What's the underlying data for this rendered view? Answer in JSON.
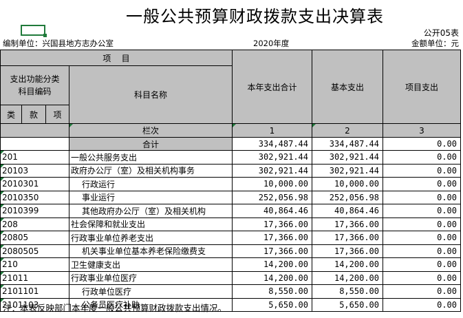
{
  "title": "一般公共预算财政拨款支出决算表",
  "form_code": "公开05表",
  "unit_label": "编制单位：兴国县地方志办公室",
  "year": "2020年度",
  "currency_label": "金额单位：元",
  "header": {
    "items": "项    目",
    "func_code": "支出功能分类\n科目编码",
    "subject_name": "科目名称",
    "total": "本年支出合计",
    "basic": "基本支出",
    "project": "项目支出",
    "lei": "类",
    "kuan": "款",
    "xiang": "项",
    "column_no": "栏次",
    "col1": "1",
    "col2": "2",
    "col3": "3"
  },
  "sum_row": {
    "label": "合计",
    "total": "334,487.44",
    "basic": "334,487.44",
    "project": "0.00"
  },
  "rows": [
    {
      "code": "201",
      "name": "一般公共服务支出",
      "total": "302,921.44",
      "basic": "302,921.44",
      "project": "0.00"
    },
    {
      "code": "20103",
      "name": "政府办公厅（室）及相关机构事务",
      "total": "302,921.44",
      "basic": "302,921.44",
      "project": "0.00"
    },
    {
      "code": "2010301",
      "name": "行政运行",
      "total": "10,000.00",
      "basic": "10,000.00",
      "project": "0.00"
    },
    {
      "code": "2010350",
      "name": "事业运行",
      "total": "252,056.98",
      "basic": "252,056.98",
      "project": "0.00"
    },
    {
      "code": "2010399",
      "name": "其他政府办公厅（室）及相关机构",
      "total": "40,864.46",
      "basic": "40,864.46",
      "project": "0.00"
    },
    {
      "code": "208",
      "name": "社会保障和就业支出",
      "total": "17,366.00",
      "basic": "17,366.00",
      "project": "0.00"
    },
    {
      "code": "20805",
      "name": "行政事业单位养老支出",
      "total": "17,366.00",
      "basic": "17,366.00",
      "project": "0.00"
    },
    {
      "code": "2080505",
      "name": "机关事业单位基本养老保险缴费支",
      "total": "17,366.00",
      "basic": "17,366.00",
      "project": "0.00"
    },
    {
      "code": "210",
      "name": "卫生健康支出",
      "total": "14,200.00",
      "basic": "14,200.00",
      "project": "0.00"
    },
    {
      "code": "21011",
      "name": "行政事业单位医疗",
      "total": "14,200.00",
      "basic": "14,200.00",
      "project": "0.00"
    },
    {
      "code": "2101101",
      "name": "行政单位医疗",
      "total": "8,550.00",
      "basic": "8,550.00",
      "project": "0.00"
    },
    {
      "code": "2101103",
      "name": "公务员医疗补助",
      "total": "5,650.00",
      "basic": "5,650.00",
      "project": "0.00"
    }
  ],
  "note": "注：本表反映部门本年度一般公共预算财政拨款支出情况。"
}
